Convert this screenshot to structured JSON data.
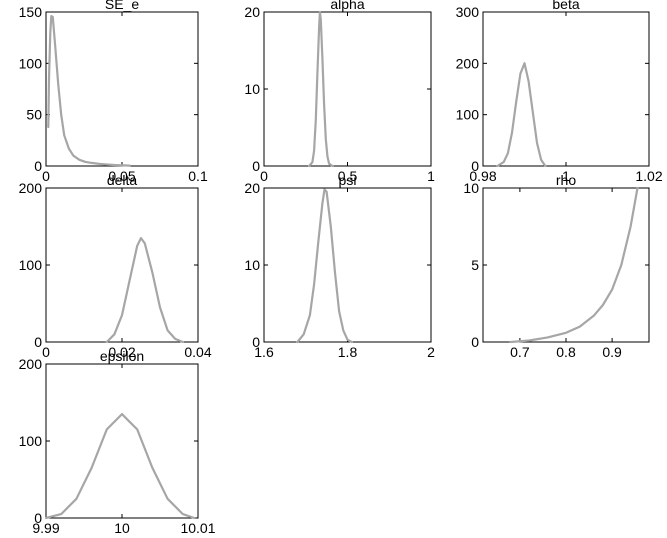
{
  "figure": {
    "line_color": "#a6a6a6",
    "background": "#ffffff"
  },
  "chart_data": [
    {
      "type": "line",
      "title": "SE_e",
      "xlabel": "",
      "ylabel": "",
      "xlim": [
        0,
        0.1
      ],
      "ylim": [
        0,
        150
      ],
      "xticks": [
        {
          "v": 0,
          "label": "0"
        },
        {
          "v": 0.05,
          "label": "0.05"
        },
        {
          "v": 0.1,
          "label": "0.1"
        }
      ],
      "yticks": [
        {
          "v": 0,
          "label": "0"
        },
        {
          "v": 50,
          "label": "50"
        },
        {
          "v": 100,
          "label": "100"
        },
        {
          "v": 150,
          "label": "150"
        }
      ],
      "series": [
        {
          "x": [
            0.0015,
            0.002,
            0.0028,
            0.0035,
            0.0045,
            0.006,
            0.008,
            0.01,
            0.012,
            0.015,
            0.018,
            0.022,
            0.026,
            0.03,
            0.035,
            0.04,
            0.045,
            0.05,
            0.055
          ],
          "y": [
            38,
            85,
            130,
            146,
            145,
            118,
            80,
            50,
            30,
            17,
            10,
            6,
            4,
            3,
            2,
            1.5,
            1,
            0.7,
            0.4
          ]
        }
      ]
    },
    {
      "type": "line",
      "title": "alpha",
      "xlabel": "",
      "ylabel": "",
      "xlim": [
        0,
        1
      ],
      "ylim": [
        0,
        20
      ],
      "xticks": [
        {
          "v": 0,
          "label": "0"
        },
        {
          "v": 0.5,
          "label": "0.5"
        },
        {
          "v": 1,
          "label": "1"
        }
      ],
      "yticks": [
        {
          "v": 0,
          "label": "0"
        },
        {
          "v": 10,
          "label": "10"
        },
        {
          "v": 20,
          "label": "20"
        }
      ],
      "series": [
        {
          "x": [
            0.27,
            0.29,
            0.3,
            0.31,
            0.32,
            0.33,
            0.335,
            0.34,
            0.35,
            0.36,
            0.37,
            0.38,
            0.39,
            0.41
          ],
          "y": [
            0,
            0.5,
            2,
            6,
            12,
            18,
            20,
            19,
            14,
            8,
            3.5,
            1.2,
            0.3,
            0
          ]
        }
      ]
    },
    {
      "type": "line",
      "title": "beta",
      "xlabel": "",
      "ylabel": "",
      "xlim": [
        0.98,
        1.02
      ],
      "ylim": [
        0,
        300
      ],
      "xticks": [
        {
          "v": 0.98,
          "label": "0.98"
        },
        {
          "v": 1,
          "label": "1"
        },
        {
          "v": 1.02,
          "label": "1.02"
        }
      ],
      "yticks": [
        {
          "v": 0,
          "label": "0"
        },
        {
          "v": 100,
          "label": "100"
        },
        {
          "v": 200,
          "label": "200"
        },
        {
          "v": 300,
          "label": "300"
        }
      ],
      "series": [
        {
          "x": [
            0.9835,
            0.985,
            0.986,
            0.987,
            0.988,
            0.989,
            0.99,
            0.991,
            0.992,
            0.993,
            0.994,
            0.995
          ],
          "y": [
            0,
            8,
            25,
            65,
            125,
            180,
            200,
            165,
            105,
            45,
            12,
            0
          ]
        }
      ]
    },
    {
      "type": "line",
      "title": "delta",
      "xlabel": "",
      "ylabel": "",
      "xlim": [
        0,
        0.04
      ],
      "ylim": [
        0,
        200
      ],
      "xticks": [
        {
          "v": 0,
          "label": "0"
        },
        {
          "v": 0.02,
          "label": "0.02"
        },
        {
          "v": 0.04,
          "label": "0.04"
        }
      ],
      "yticks": [
        {
          "v": 0,
          "label": "0"
        },
        {
          "v": 100,
          "label": "100"
        },
        {
          "v": 200,
          "label": "200"
        }
      ],
      "series": [
        {
          "x": [
            0.016,
            0.018,
            0.02,
            0.022,
            0.024,
            0.025,
            0.026,
            0.028,
            0.03,
            0.032,
            0.034,
            0.036
          ],
          "y": [
            0,
            10,
            35,
            80,
            125,
            135,
            128,
            90,
            45,
            15,
            4,
            0
          ]
        }
      ]
    },
    {
      "type": "line",
      "title": "psi",
      "xlabel": "",
      "ylabel": "",
      "xlim": [
        1.6,
        2
      ],
      "ylim": [
        0,
        20
      ],
      "xticks": [
        {
          "v": 1.6,
          "label": "1.6"
        },
        {
          "v": 1.8,
          "label": "1.8"
        },
        {
          "v": 2,
          "label": "2"
        }
      ],
      "yticks": [
        {
          "v": 0,
          "label": "0"
        },
        {
          "v": 10,
          "label": "10"
        },
        {
          "v": 20,
          "label": "20"
        }
      ],
      "series": [
        {
          "x": [
            1.68,
            1.695,
            1.71,
            1.72,
            1.73,
            1.74,
            1.745,
            1.75,
            1.76,
            1.77,
            1.78,
            1.79,
            1.8,
            1.81
          ],
          "y": [
            0,
            1,
            3.5,
            7.5,
            13,
            18,
            19.8,
            19.5,
            15,
            9,
            4,
            1.5,
            0.3,
            0
          ]
        }
      ]
    },
    {
      "type": "line",
      "title": "rho",
      "xlabel": "",
      "ylabel": "",
      "xlim": [
        0.62,
        0.98
      ],
      "ylim": [
        0,
        10
      ],
      "xticks": [
        {
          "v": 0.7,
          "label": "0.7"
        },
        {
          "v": 0.8,
          "label": "0.8"
        },
        {
          "v": 0.9,
          "label": "0.9"
        }
      ],
      "yticks": [
        {
          "v": 0,
          "label": "0"
        },
        {
          "v": 5,
          "label": "5"
        },
        {
          "v": 10,
          "label": "10"
        }
      ],
      "series": [
        {
          "x": [
            0.68,
            0.72,
            0.76,
            0.8,
            0.83,
            0.86,
            0.88,
            0.9,
            0.92,
            0.94,
            0.955
          ],
          "y": [
            0,
            0.1,
            0.3,
            0.6,
            1.0,
            1.7,
            2.4,
            3.4,
            5.0,
            7.5,
            10
          ]
        }
      ]
    },
    {
      "type": "line",
      "title": "epsilon",
      "xlabel": "",
      "ylabel": "",
      "xlim": [
        9.99,
        10.01
      ],
      "ylim": [
        0,
        200
      ],
      "xticks": [
        {
          "v": 9.99,
          "label": "9.99"
        },
        {
          "v": 10,
          "label": "10"
        },
        {
          "v": 10.01,
          "label": "10.01"
        }
      ],
      "yticks": [
        {
          "v": 0,
          "label": "0"
        },
        {
          "v": 100,
          "label": "100"
        },
        {
          "v": 200,
          "label": "200"
        }
      ],
      "series": [
        {
          "x": [
            9.99,
            9.992,
            9.994,
            9.996,
            9.998,
            10,
            10.002,
            10.004,
            10.006,
            10.008,
            10.0095
          ],
          "y": [
            0,
            5,
            25,
            65,
            115,
            135,
            115,
            65,
            25,
            5,
            0
          ]
        }
      ]
    }
  ]
}
